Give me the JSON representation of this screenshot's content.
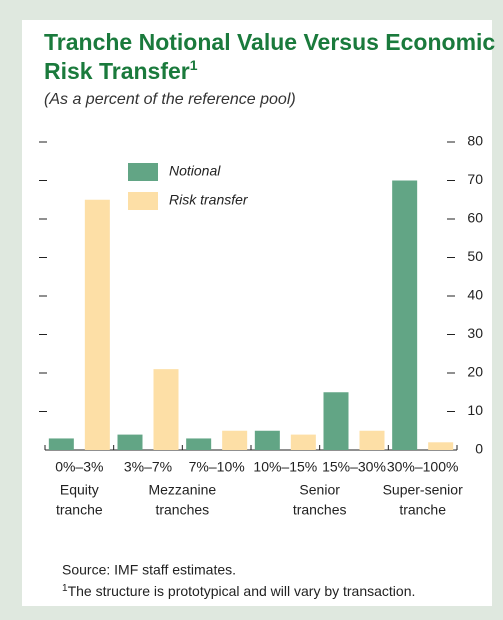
{
  "chart_data": {
    "type": "bar",
    "title": [
      "Tranche Notional Value Versus Economic",
      "Risk Transfer"
    ],
    "title_note": "1",
    "subtitle": "(As a percent of the reference pool)",
    "categories": [
      "0%–3%",
      "3%–7%",
      "7%–10%",
      "10%–15%",
      "15%–30%",
      "30%–100%"
    ],
    "groups": [
      [
        "Equity",
        "tranche"
      ],
      [
        "Mezzanine",
        "tranches"
      ],
      [
        "Senior",
        "tranches"
      ],
      [
        "Super-senior",
        "tranche"
      ]
    ],
    "series": [
      {
        "name": "Notional",
        "color": "#62a585",
        "values": [
          3,
          4,
          3,
          5,
          15,
          70
        ]
      },
      {
        "name": "Risk transfer",
        "color": "#fddfa6",
        "values": [
          65,
          21,
          5,
          4,
          5,
          2
        ]
      }
    ],
    "ylim": [
      0,
      80
    ],
    "yticks": [
      0,
      10,
      20,
      30,
      40,
      50,
      60,
      70,
      80
    ],
    "source": "Source: IMF staff estimates.",
    "footnote_marker": "1",
    "footnote": "The structure is prototypical and will vary by transaction."
  }
}
